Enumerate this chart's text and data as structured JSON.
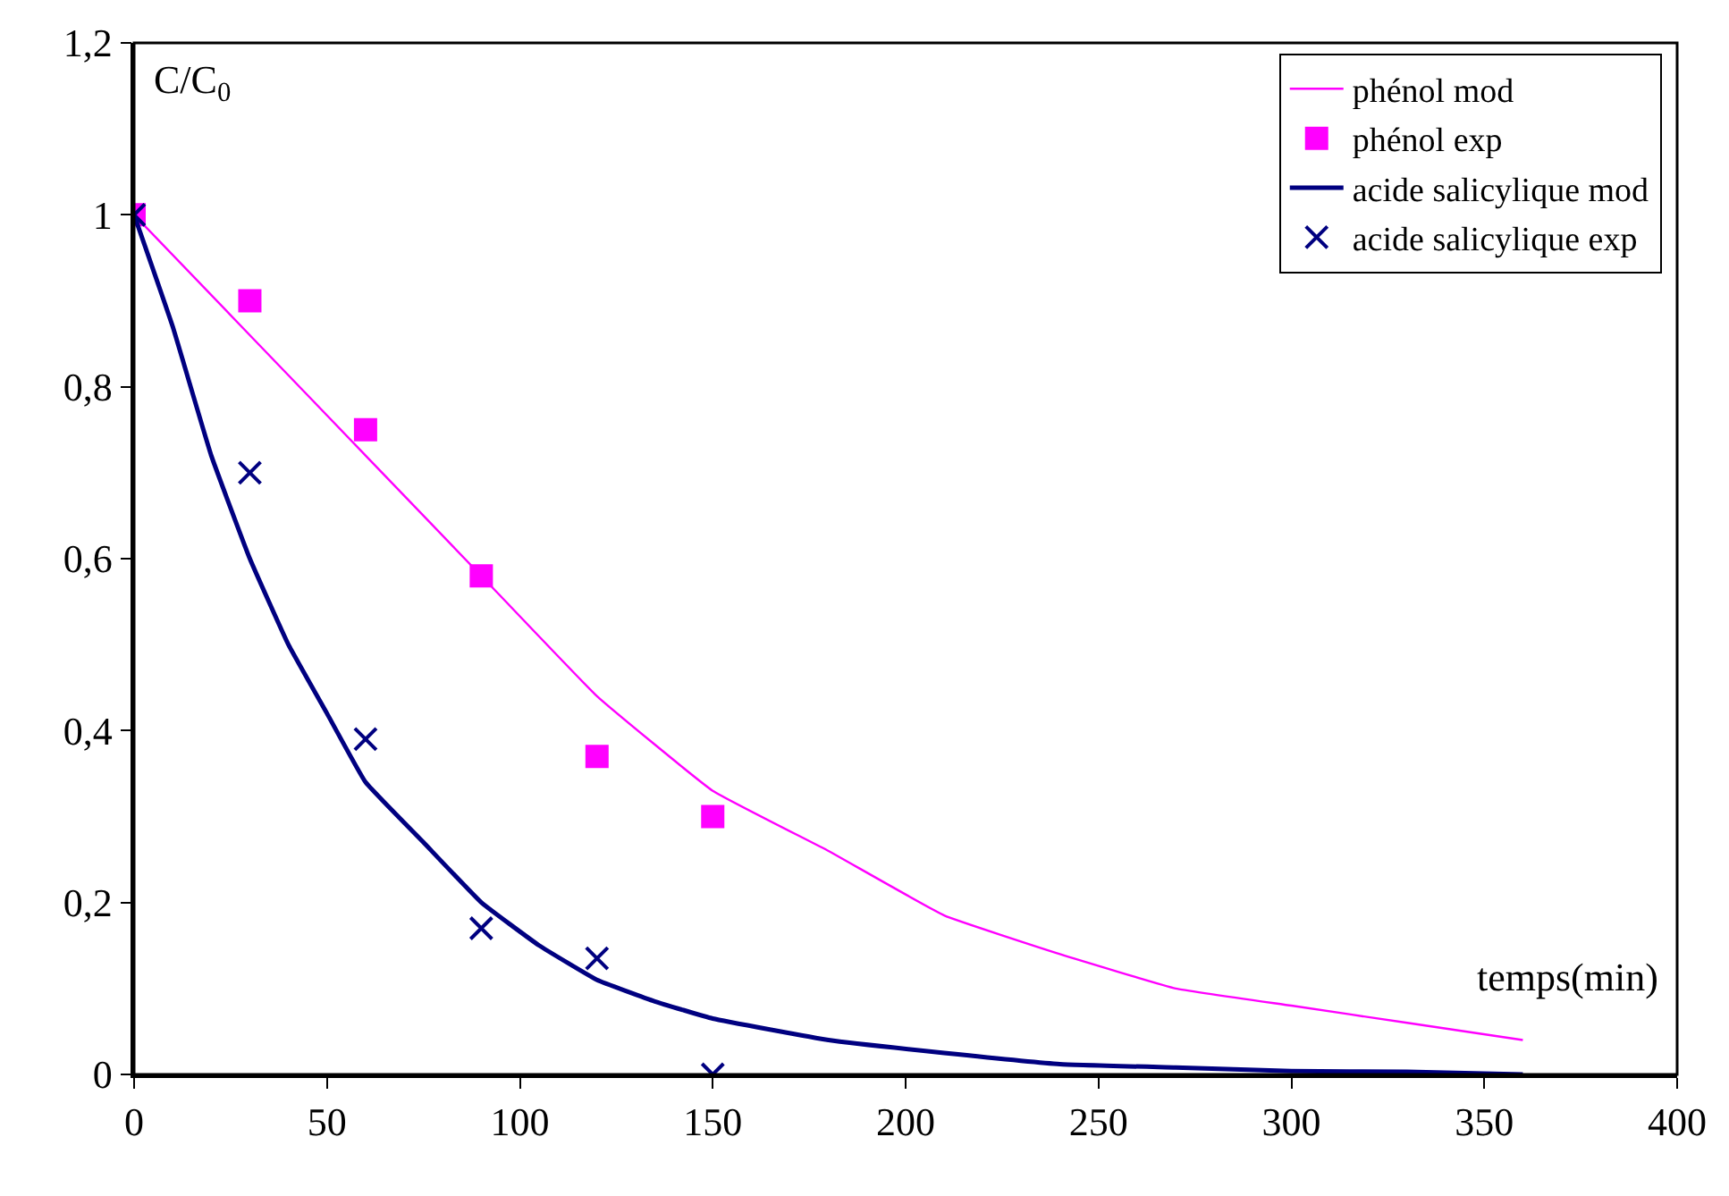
{
  "chart_data": {
    "type": "line",
    "xlabel": "temps(min)",
    "ylabel": "C/C$_{0}$",
    "xlim": [
      0,
      400
    ],
    "xticks": [
      0,
      50,
      100,
      150,
      200,
      250,
      300,
      350,
      400
    ],
    "ylim": [
      0,
      1.2
    ],
    "yticks": [
      {
        "value": 0,
        "label": "0"
      },
      {
        "value": 0.2,
        "label": "0,2"
      },
      {
        "value": 0.4,
        "label": "0,4"
      },
      {
        "value": 0.6,
        "label": "0,6"
      },
      {
        "value": 0.8,
        "label": "0,8"
      },
      {
        "value": 1,
        "label": "1"
      },
      {
        "value": 1.2,
        "label": "1,2"
      }
    ],
    "legend": "top right",
    "series": [
      {
        "name": "phénol mod",
        "color": "#ff00ff",
        "x": [
          0,
          30,
          60,
          90,
          120,
          150,
          180,
          210,
          240,
          270,
          300,
          330,
          360
        ],
        "values": [
          1,
          0.86,
          0.72,
          0.58,
          0.44,
          0.33,
          0.26,
          0.185,
          0.14,
          0.1,
          0.08,
          0.06,
          0.04
        ]
      },
      {
        "name": "phénol exp",
        "type": "scatter",
        "marker": "square",
        "color": "#ff00ff",
        "x": [
          0,
          30,
          60,
          90,
          120,
          150
        ],
        "values": [
          1,
          0.9,
          0.75,
          0.58,
          0.37,
          0.3
        ]
      },
      {
        "name": "acide salicylique mod",
        "color": "#000080",
        "x": [
          0,
          10,
          20,
          30,
          40,
          50,
          60,
          75,
          90,
          105,
          120,
          135,
          150,
          180,
          210,
          240,
          270,
          300,
          330,
          360
        ],
        "values": [
          1,
          0.87,
          0.72,
          0.6,
          0.5,
          0.42,
          0.34,
          0.27,
          0.2,
          0.15,
          0.11,
          0.085,
          0.065,
          0.04,
          0.025,
          0.012,
          0.008,
          0.004,
          0.003,
          0
        ]
      },
      {
        "name": "acide salicylique exp",
        "type": "scatter",
        "marker": "cross",
        "color": "#000080",
        "x": [
          0,
          30,
          60,
          90,
          120,
          150
        ],
        "values": [
          1,
          0.7,
          0.39,
          0.17,
          0.135,
          0
        ]
      }
    ]
  }
}
